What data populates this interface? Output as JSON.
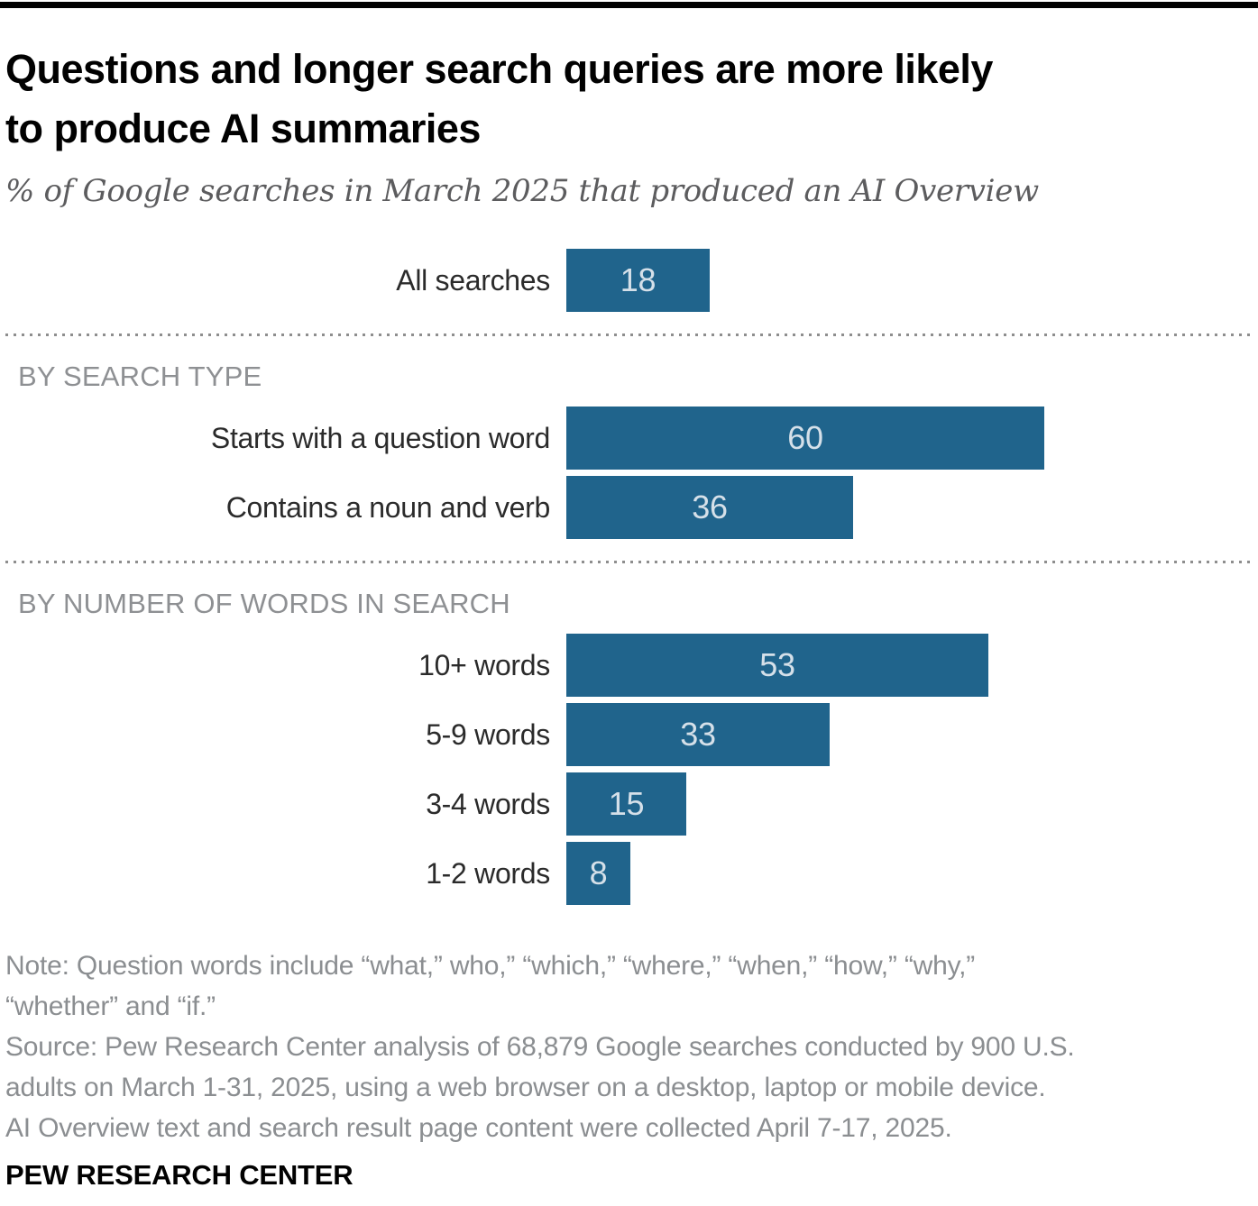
{
  "header": {
    "title_lines": [
      "Questions and longer search queries are more likely",
      "to produce AI summaries"
    ],
    "subtitle": "% of Google searches in March 2025 that produced an AI Overview"
  },
  "chart_data": {
    "type": "bar",
    "orientation": "horizontal",
    "title": "Questions and longer search queries are more likely to produce AI summaries",
    "subtitle": "% of Google searches in March 2025 that produced an AI Overview",
    "unit": "%",
    "xmax": 60,
    "grid": false,
    "value_label_position": "inside-center",
    "bar_color": "#20648C",
    "value_text_color": "#D5E0E9",
    "sections": [
      {
        "header": "",
        "rows": [
          {
            "label": "All searches",
            "value": 18
          }
        ]
      },
      {
        "header": "BY SEARCH TYPE",
        "rows": [
          {
            "label": "Starts with a question word",
            "value": 60
          },
          {
            "label": "Contains a noun and verb",
            "value": 36
          }
        ]
      },
      {
        "header": "BY NUMBER OF WORDS IN SEARCH",
        "rows": [
          {
            "label": "10+ words",
            "value": 53
          },
          {
            "label": "5-9 words",
            "value": 33
          },
          {
            "label": "3-4 words",
            "value": 15
          },
          {
            "label": "1-2 words",
            "value": 8
          }
        ]
      }
    ]
  },
  "footnotes": {
    "note_lines": [
      "Note: Question words include “what,” who,” “which,” “where,” “when,” “how,” “why,”",
      "“whether” and “if.”"
    ],
    "source_lines": [
      "Source: Pew Research Center analysis of 68,879 Google searches conducted by 900 U.S.",
      "adults on March 1-31, 2025, using a web browser on a desktop, laptop or mobile device.",
      "AI Overview text and search result page content were collected April 7-17, 2025."
    ]
  },
  "footer": {
    "label": "PEW RESEARCH CENTER"
  }
}
